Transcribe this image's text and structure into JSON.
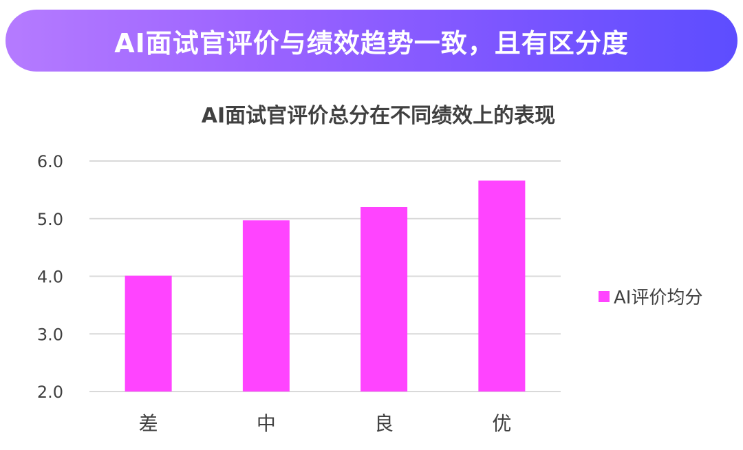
{
  "banner": {
    "title": "AI面试官评价与绩效趋势一致，且有区分度"
  },
  "colors": {
    "banner_start": "#b57bff",
    "banner_end": "#5d4dff",
    "bar": "#ff44ff",
    "gridline": "#d9d9d9",
    "text": "#404040"
  },
  "chart_data": {
    "type": "bar",
    "title": "AI面试官评价总分在不同绩效上的表现",
    "categories": [
      "差",
      "中",
      "良",
      "优"
    ],
    "series": [
      {
        "name": "AI评价均分",
        "values": [
          4.01,
          4.97,
          5.2,
          5.66
        ]
      }
    ],
    "xlabel": "",
    "ylabel": "",
    "ylim": [
      2.0,
      6.0
    ],
    "yticks": [
      "2.0",
      "3.0",
      "4.0",
      "5.0",
      "6.0"
    ],
    "grid": true,
    "legend_position": "right"
  }
}
